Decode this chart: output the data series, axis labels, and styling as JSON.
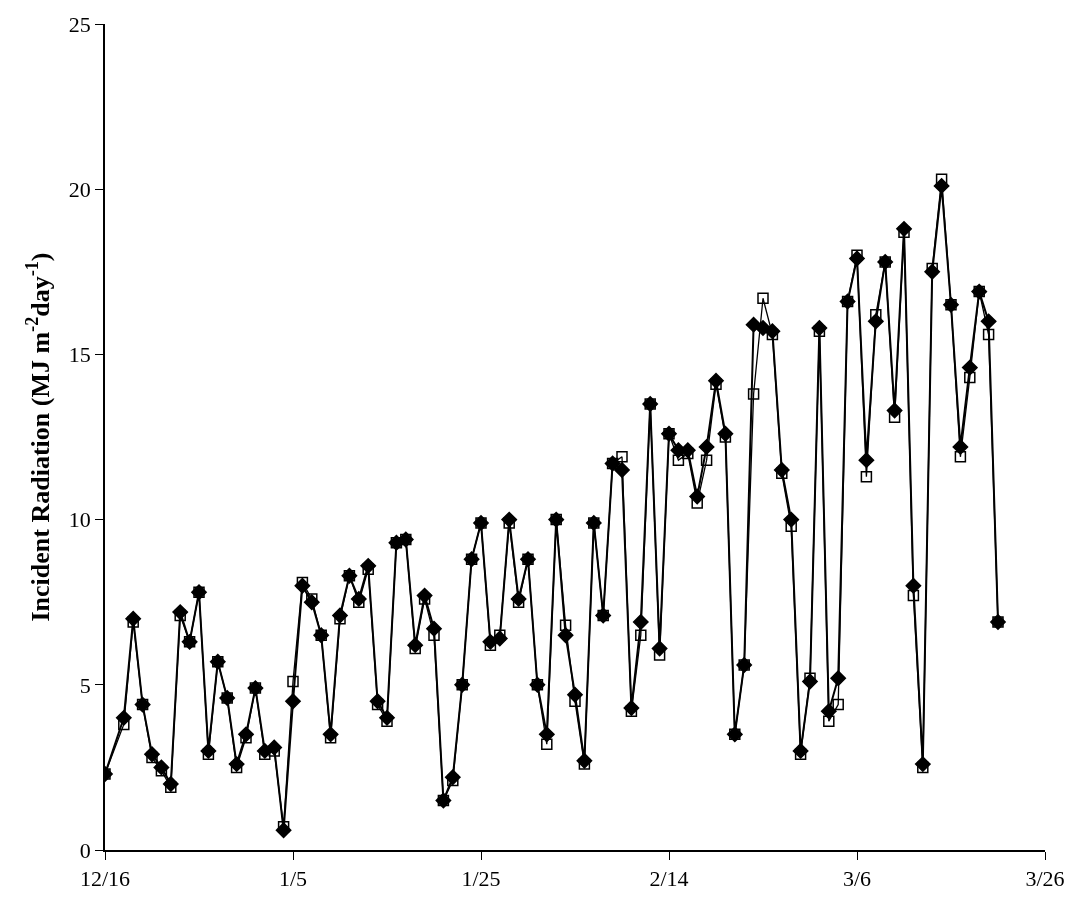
{
  "chart_data": {
    "type": "line",
    "ylabel": "Incident Radiation (MJ m$^{-2}$day$^{-1}$)",
    "categories": [
      "12/16",
      null,
      null,
      null,
      null,
      null,
      null,
      null,
      null,
      null,
      null,
      null,
      null,
      null,
      null,
      null,
      null,
      null,
      null,
      null,
      "1/5",
      null,
      null,
      null,
      null,
      null,
      null,
      null,
      null,
      null,
      null,
      null,
      null,
      null,
      null,
      null,
      null,
      null,
      null,
      null,
      "1/25",
      null,
      null,
      null,
      null,
      null,
      null,
      null,
      null,
      null,
      null,
      null,
      null,
      null,
      null,
      null,
      null,
      null,
      null,
      null,
      "2/14",
      null,
      null,
      null,
      null,
      null,
      null,
      null,
      null,
      null,
      null,
      null,
      null,
      null,
      null,
      null,
      null,
      null,
      null,
      null,
      "3/6",
      null,
      null,
      null,
      null,
      null,
      null,
      null,
      null,
      null,
      null,
      null,
      null,
      null,
      null,
      null,
      null,
      null,
      null,
      null,
      "3/26"
    ],
    "series": [
      {
        "color": "#000000",
        "marker": "diamond",
        "values": [
          2.3,
          null,
          4.0,
          7.0,
          4.4,
          2.9,
          2.5,
          2.0,
          7.2,
          6.3,
          7.8,
          3.0,
          5.7,
          4.6,
          2.6,
          3.5,
          4.9,
          3.0,
          3.1,
          0.6,
          4.5,
          8.0,
          7.5,
          6.5,
          3.5,
          7.1,
          8.3,
          7.6,
          8.6,
          4.5,
          4.0,
          9.3,
          9.4,
          6.2,
          7.7,
          6.7,
          1.5,
          2.2,
          5.0,
          8.8,
          9.9,
          6.3,
          6.4,
          10.0,
          7.6,
          8.8,
          5.0,
          3.5,
          10.0,
          6.5,
          4.7,
          2.7,
          9.9,
          7.1,
          11.7,
          11.5,
          4.3,
          6.9,
          13.5,
          6.1,
          12.6,
          12.1,
          12.1,
          10.7,
          12.2,
          14.2,
          12.6,
          3.5,
          5.6,
          15.9,
          15.8,
          15.7,
          11.5,
          10.0,
          3.0,
          5.1,
          15.8,
          4.2,
          5.2,
          16.6,
          17.9,
          11.8,
          16.0,
          17.8,
          13.3,
          18.8,
          8.0,
          2.6,
          17.5,
          20.1,
          16.5,
          12.2,
          14.6,
          16.9,
          16.0,
          6.9,
          null,
          null,
          null,
          null,
          null
        ]
      },
      {
        "color": "#000000",
        "marker": "square",
        "values": [
          2.3,
          null,
          3.8,
          6.9,
          4.4,
          2.8,
          2.4,
          1.9,
          7.1,
          6.3,
          7.8,
          2.9,
          5.7,
          4.6,
          2.5,
          3.4,
          4.9,
          2.9,
          3.0,
          0.7,
          5.1,
          8.1,
          7.6,
          6.5,
          3.4,
          7.0,
          8.3,
          7.5,
          8.5,
          4.4,
          3.9,
          9.3,
          9.4,
          6.1,
          7.6,
          6.5,
          1.5,
          2.1,
          5.0,
          8.8,
          9.9,
          6.2,
          6.5,
          9.9,
          7.5,
          8.8,
          5.0,
          3.2,
          10.0,
          6.8,
          4.5,
          2.6,
          9.9,
          7.1,
          11.7,
          11.9,
          4.2,
          6.5,
          13.5,
          5.9,
          12.6,
          11.8,
          12.0,
          10.5,
          11.8,
          14.1,
          12.5,
          3.5,
          5.6,
          13.8,
          16.7,
          15.6,
          11.4,
          9.8,
          2.9,
          5.2,
          15.7,
          3.9,
          4.4,
          16.6,
          18.0,
          11.3,
          16.2,
          17.8,
          13.1,
          18.7,
          7.7,
          2.5,
          17.6,
          20.3,
          16.5,
          11.9,
          14.3,
          16.9,
          15.6,
          6.9,
          null,
          null,
          null,
          null,
          null
        ]
      }
    ],
    "ylim": [
      0,
      25
    ],
    "yticks": [
      0,
      5,
      10,
      15,
      20,
      25
    ],
    "grid": false
  }
}
